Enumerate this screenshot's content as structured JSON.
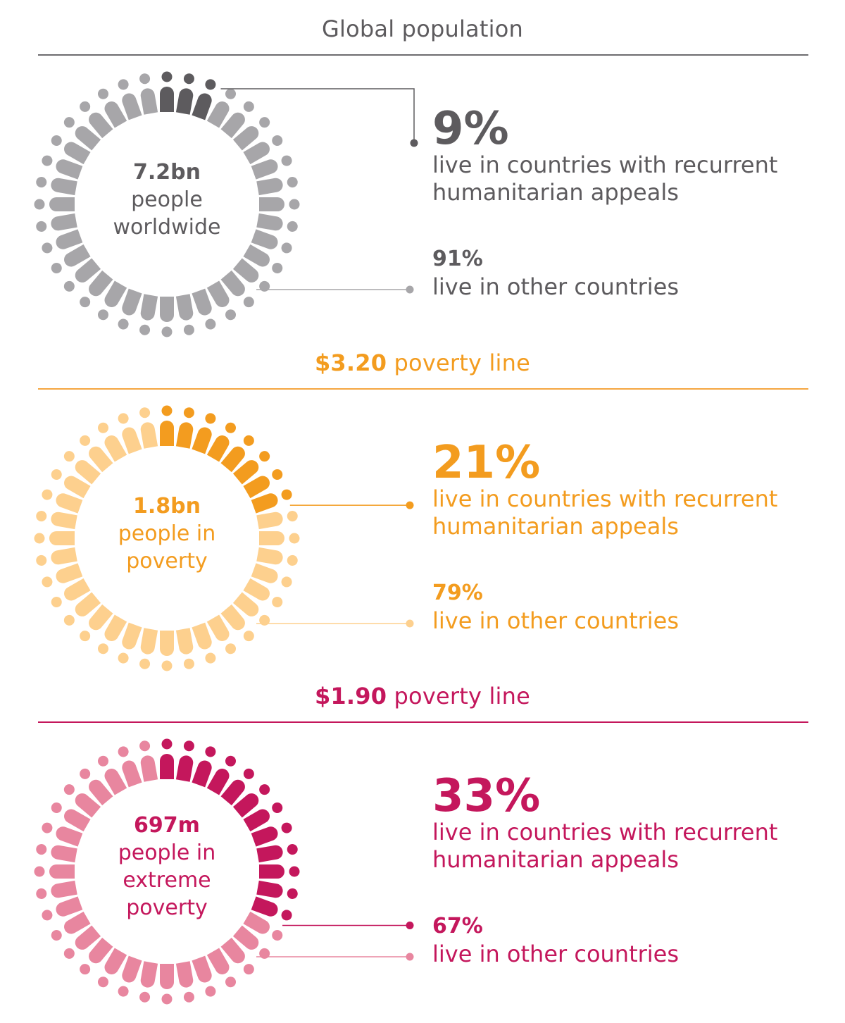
{
  "chart_data": [
    {
      "type": "pie",
      "title": "Global population",
      "title_prefix": "",
      "total_label": "7.2bn",
      "total_caption": [
        "people",
        "worldwide"
      ],
      "slices": [
        {
          "label": "live in countries with recurrent humanitarian appeals",
          "value": 9,
          "display": "9%"
        },
        {
          "label": "live in other countries",
          "value": 91,
          "display": "91%"
        }
      ],
      "colors": {
        "accent": "#5d5b5e",
        "light": "#a7a6a9",
        "rule": "#6d6c6f"
      }
    },
    {
      "type": "pie",
      "title": " poverty line",
      "title_prefix": "$3.20",
      "total_label": "1.8bn",
      "total_caption": [
        "people in",
        "poverty"
      ],
      "slices": [
        {
          "label": "live in countries with recurrent humanitarian appeals",
          "value": 21,
          "display": "21%"
        },
        {
          "label": "live in other countries",
          "value": 79,
          "display": "79%"
        }
      ],
      "colors": {
        "accent": "#f39c1f",
        "light": "#fdd08e",
        "rule": "#f5a640"
      }
    },
    {
      "type": "pie",
      "title": " poverty line",
      "title_prefix": "$1.90",
      "total_label": "697m",
      "total_caption": [
        "people in",
        "extreme",
        "poverty"
      ],
      "slices": [
        {
          "label": "live in countries with recurrent humanitarian appeals",
          "value": 33,
          "display": "33%"
        },
        {
          "label": "live in other countries",
          "value": 67,
          "display": "67%"
        }
      ],
      "colors": {
        "accent": "#c4175c",
        "light": "#e8869f",
        "rule": "#c4175c"
      }
    }
  ]
}
